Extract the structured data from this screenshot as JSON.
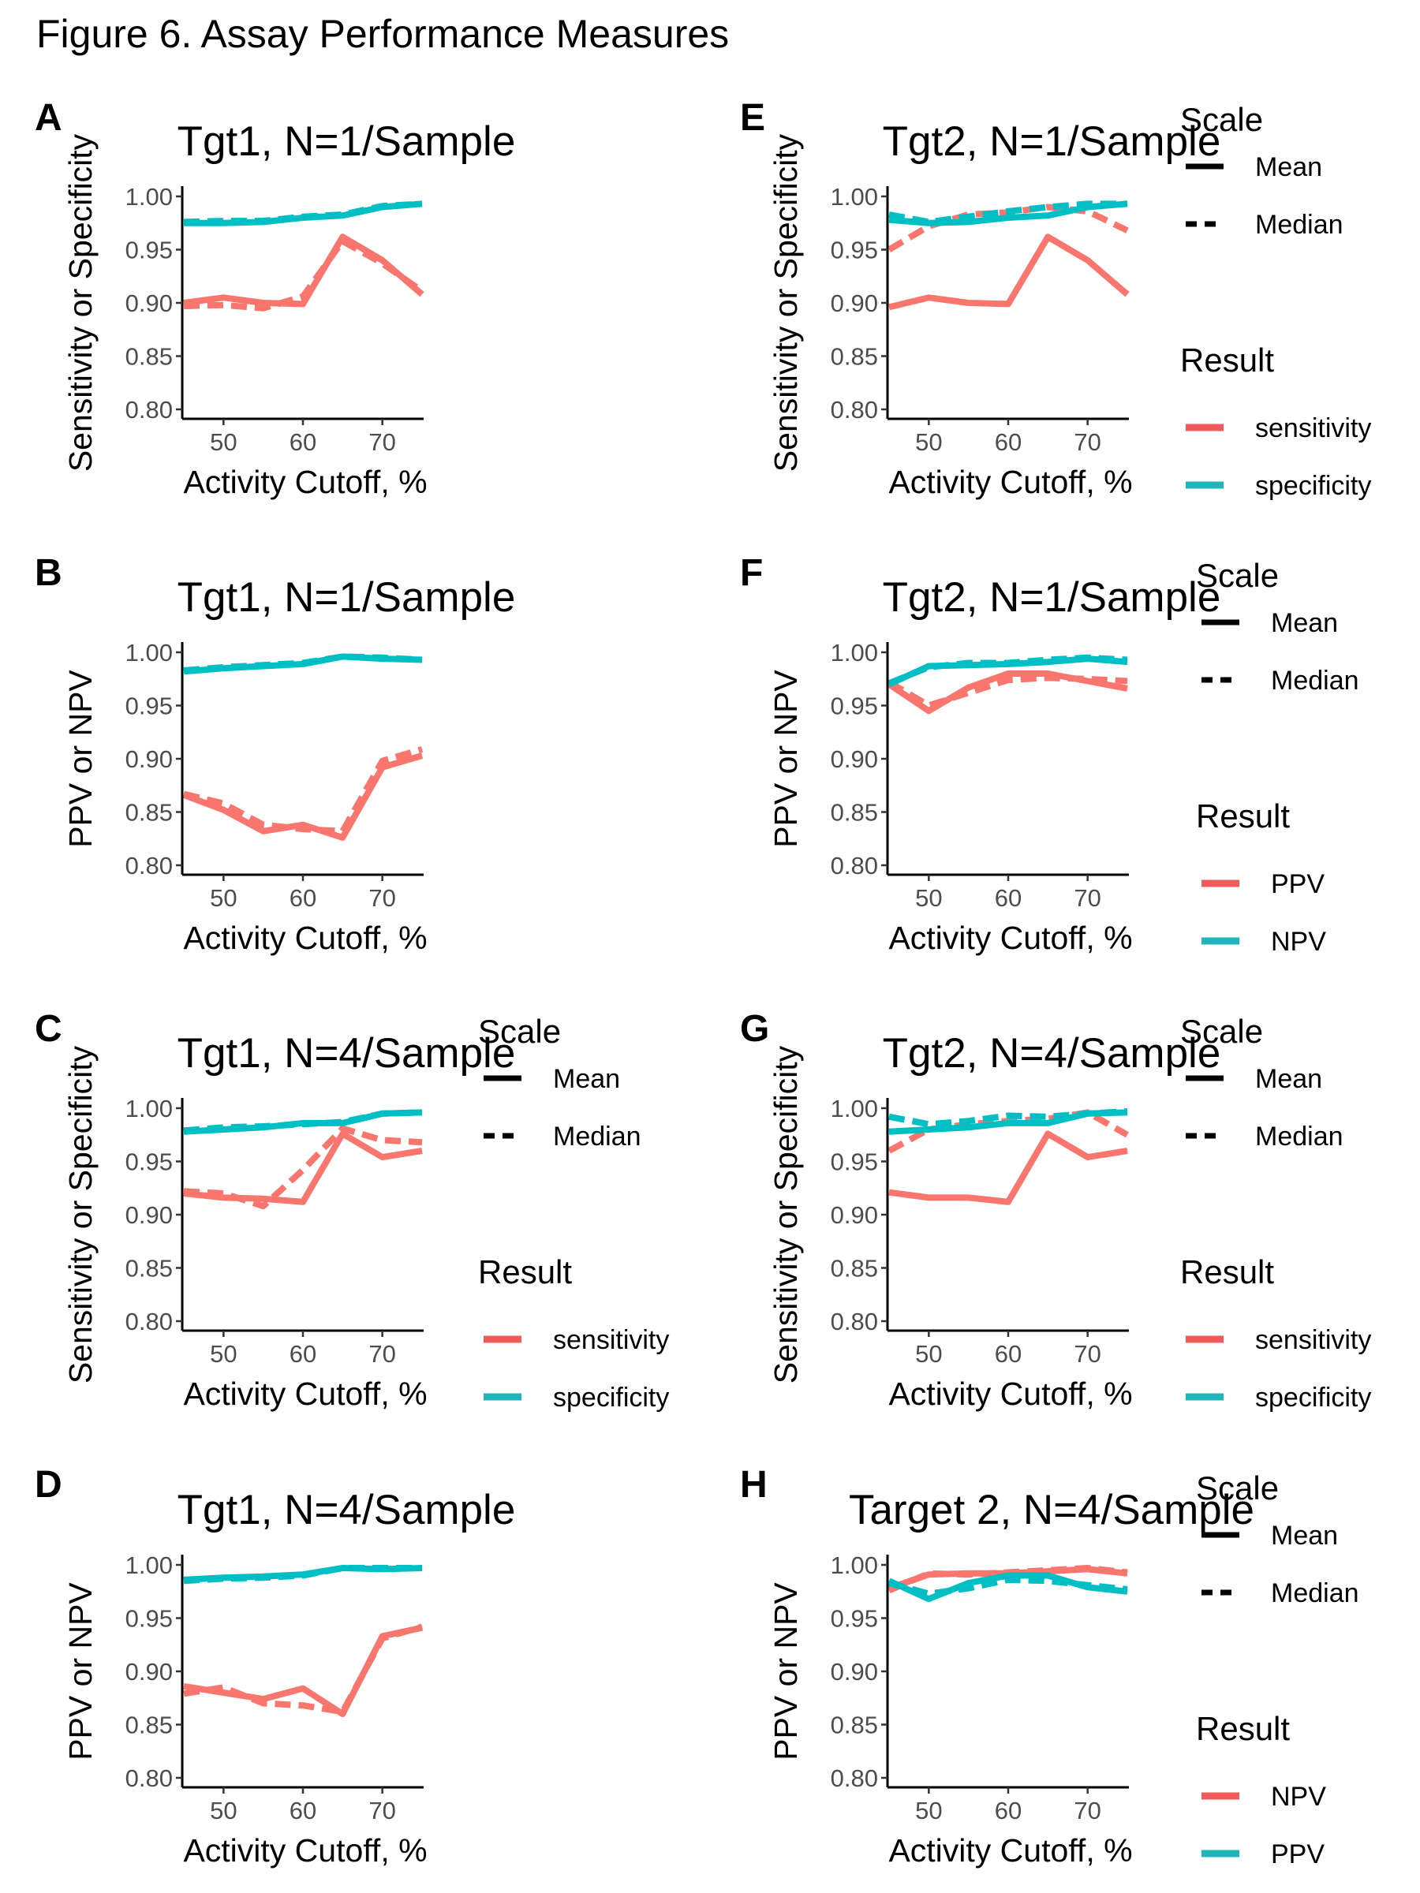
{
  "figure_title": "Figure 6. Assay Performance Measures",
  "colors": {
    "red": "#F8766D",
    "teal": "#00BFC4",
    "legend_red": "#F05A5A",
    "legend_teal": "#1FB5B9"
  },
  "chart_data": [
    {
      "panel": "A",
      "type": "line",
      "title": "Tgt1, N=1/Sample",
      "xlabel": "Activity Cutoff, %",
      "ylabel": "Sensitivity or Specificity",
      "xlim": [
        45,
        75
      ],
      "ylim": [
        0.8,
        1.0
      ],
      "x_ticks": [
        50,
        60,
        70
      ],
      "y_ticks": [
        "0.80",
        "0.85",
        "0.90",
        "0.95",
        "1.00"
      ],
      "x": [
        45,
        50,
        55,
        60,
        65,
        70,
        75
      ],
      "series": [
        {
          "result": "sensitivity",
          "scale": "Mean",
          "color": "#F8766D",
          "values": [
            0.9,
            0.905,
            0.9,
            0.899,
            0.962,
            0.94,
            0.908
          ]
        },
        {
          "result": "sensitivity",
          "scale": "Median",
          "color": "#F8766D",
          "values": [
            0.897,
            0.898,
            0.895,
            0.906,
            0.958,
            0.937,
            0.911
          ]
        },
        {
          "result": "specificity",
          "scale": "Mean",
          "color": "#00BFC4",
          "values": [
            0.975,
            0.975,
            0.976,
            0.98,
            0.982,
            0.99,
            0.993
          ]
        },
        {
          "result": "specificity",
          "scale": "Median",
          "color": "#00BFC4",
          "values": [
            0.976,
            0.977,
            0.977,
            0.981,
            0.983,
            0.991,
            0.993
          ]
        }
      ]
    },
    {
      "panel": "B",
      "type": "line",
      "title": "Tgt1, N=1/Sample",
      "xlabel": "Activity Cutoff, %",
      "ylabel": "PPV or NPV",
      "xlim": [
        45,
        75
      ],
      "ylim": [
        0.8,
        1.0
      ],
      "x_ticks": [
        50,
        60,
        70
      ],
      "y_ticks": [
        "0.80",
        "0.85",
        "0.90",
        "0.95",
        "1.00"
      ],
      "x": [
        45,
        50,
        55,
        60,
        65,
        70,
        75
      ],
      "series": [
        {
          "result": "PPV",
          "scale": "Mean",
          "color": "#F8766D",
          "values": [
            0.866,
            0.852,
            0.832,
            0.838,
            0.826,
            0.892,
            0.903
          ]
        },
        {
          "result": "PPV",
          "scale": "Median",
          "color": "#F8766D",
          "values": [
            0.867,
            0.858,
            0.838,
            0.834,
            0.832,
            0.898,
            0.909
          ]
        },
        {
          "result": "NPV",
          "scale": "Mean",
          "color": "#00BFC4",
          "values": [
            0.982,
            0.985,
            0.987,
            0.989,
            0.996,
            0.994,
            0.993
          ]
        },
        {
          "result": "NPV",
          "scale": "Median",
          "color": "#00BFC4",
          "values": [
            0.983,
            0.986,
            0.988,
            0.99,
            0.996,
            0.995,
            0.993
          ]
        }
      ]
    },
    {
      "panel": "C",
      "type": "line",
      "title": "Tgt1, N=4/Sample",
      "xlabel": "Activity Cutoff, %",
      "ylabel": "Sensitivity or Specificity",
      "xlim": [
        45,
        75
      ],
      "ylim": [
        0.8,
        1.0
      ],
      "x_ticks": [
        50,
        60,
        70
      ],
      "y_ticks": [
        "0.80",
        "0.85",
        "0.90",
        "0.95",
        "1.00"
      ],
      "x": [
        45,
        50,
        55,
        60,
        65,
        70,
        75
      ],
      "series": [
        {
          "result": "sensitivity",
          "scale": "Mean",
          "color": "#F8766D",
          "values": [
            0.92,
            0.916,
            0.915,
            0.912,
            0.976,
            0.954,
            0.96
          ]
        },
        {
          "result": "sensitivity",
          "scale": "Median",
          "color": "#F8766D",
          "values": [
            0.922,
            0.92,
            0.908,
            0.942,
            0.981,
            0.97,
            0.968
          ]
        },
        {
          "result": "specificity",
          "scale": "Mean",
          "color": "#00BFC4",
          "values": [
            0.978,
            0.98,
            0.982,
            0.986,
            0.986,
            0.995,
            0.996
          ]
        },
        {
          "result": "specificity",
          "scale": "Median",
          "color": "#00BFC4",
          "values": [
            0.979,
            0.982,
            0.983,
            0.985,
            0.987,
            0.995,
            0.996
          ]
        }
      ]
    },
    {
      "panel": "D",
      "type": "line",
      "title": "Tgt1, N=4/Sample",
      "xlabel": "Activity Cutoff, %",
      "ylabel": "PPV or NPV",
      "xlim": [
        45,
        75
      ],
      "ylim": [
        0.8,
        1.0
      ],
      "x_ticks": [
        50,
        60,
        70
      ],
      "y_ticks": [
        "0.80",
        "0.85",
        "0.90",
        "0.95",
        "1.00"
      ],
      "x": [
        45,
        50,
        55,
        60,
        65,
        70,
        75
      ],
      "series": [
        {
          "result": "PPV",
          "scale": "Mean",
          "color": "#F8766D",
          "values": [
            0.886,
            0.88,
            0.874,
            0.884,
            0.86,
            0.933,
            0.941
          ]
        },
        {
          "result": "PPV",
          "scale": "Median",
          "color": "#F8766D",
          "values": [
            0.879,
            0.885,
            0.87,
            0.868,
            0.862,
            0.931,
            0.942
          ]
        },
        {
          "result": "NPV",
          "scale": "Mean",
          "color": "#00BFC4",
          "values": [
            0.986,
            0.988,
            0.989,
            0.991,
            0.997,
            0.996,
            0.997
          ]
        },
        {
          "result": "NPV",
          "scale": "Median",
          "color": "#00BFC4",
          "values": [
            0.985,
            0.987,
            0.988,
            0.99,
            0.997,
            0.997,
            0.997
          ]
        }
      ]
    },
    {
      "panel": "E",
      "type": "line",
      "title": "Tgt2, N=1/Sample",
      "xlabel": "Activity Cutoff, %",
      "ylabel": "Sensitivity or Specificity",
      "xlim": [
        45,
        75
      ],
      "ylim": [
        0.8,
        1.0
      ],
      "x_ticks": [
        50,
        60,
        70
      ],
      "y_ticks": [
        "0.80",
        "0.85",
        "0.90",
        "0.95",
        "1.00"
      ],
      "x": [
        45,
        50,
        55,
        60,
        65,
        70,
        75
      ],
      "series": [
        {
          "result": "sensitivity",
          "scale": "Mean",
          "color": "#F8766D",
          "values": [
            0.896,
            0.905,
            0.9,
            0.899,
            0.962,
            0.94,
            0.908
          ]
        },
        {
          "result": "sensitivity",
          "scale": "Median",
          "color": "#F8766D",
          "values": [
            0.95,
            0.972,
            0.983,
            0.985,
            0.99,
            0.986,
            0.968
          ]
        },
        {
          "result": "specificity",
          "scale": "Mean",
          "color": "#00BFC4",
          "values": [
            0.978,
            0.975,
            0.976,
            0.98,
            0.982,
            0.99,
            0.993
          ]
        },
        {
          "result": "specificity",
          "scale": "Median",
          "color": "#00BFC4",
          "values": [
            0.983,
            0.976,
            0.981,
            0.986,
            0.99,
            0.993,
            0.993
          ]
        }
      ],
      "legend": {
        "scale_title": "Scale",
        "scale_items": [
          "Mean",
          "Median"
        ],
        "result_title": "Result",
        "result_items": [
          "sensitivity",
          "specificity"
        ]
      }
    },
    {
      "panel": "F",
      "type": "line",
      "title": "Tgt2, N=1/Sample",
      "xlabel": "Activity Cutoff, %",
      "ylabel": "PPV or NPV",
      "xlim": [
        45,
        75
      ],
      "ylim": [
        0.8,
        1.0
      ],
      "x_ticks": [
        50,
        60,
        70
      ],
      "y_ticks": [
        "0.80",
        "0.85",
        "0.90",
        "0.95",
        "1.00"
      ],
      "x": [
        45,
        50,
        55,
        60,
        65,
        70,
        75
      ],
      "series": [
        {
          "result": "PPV",
          "scale": "Mean",
          "color": "#F8766D",
          "values": [
            0.97,
            0.945,
            0.967,
            0.98,
            0.98,
            0.973,
            0.966
          ]
        },
        {
          "result": "PPV",
          "scale": "Median",
          "color": "#F8766D",
          "values": [
            0.972,
            0.95,
            0.962,
            0.974,
            0.976,
            0.975,
            0.973
          ]
        },
        {
          "result": "NPV",
          "scale": "Mean",
          "color": "#00BFC4",
          "values": [
            0.97,
            0.987,
            0.988,
            0.989,
            0.991,
            0.994,
            0.991
          ]
        },
        {
          "result": "NPV",
          "scale": "Median",
          "color": "#00BFC4",
          "values": [
            0.971,
            0.986,
            0.99,
            0.99,
            0.993,
            0.995,
            0.993
          ]
        }
      ],
      "legend": {
        "scale_title": "Scale",
        "scale_items": [
          "Mean",
          "Median"
        ],
        "result_title": "Result",
        "result_items": [
          "PPV",
          "NPV"
        ]
      }
    },
    {
      "panel": "G",
      "type": "line",
      "title": "Tgt2, N=4/Sample",
      "xlabel": "Activity Cutoff, %",
      "ylabel": "Sensitivity or Specificity",
      "xlim": [
        45,
        75
      ],
      "ylim": [
        0.8,
        1.0
      ],
      "x_ticks": [
        50,
        60,
        70
      ],
      "y_ticks": [
        "0.80",
        "0.85",
        "0.90",
        "0.95",
        "1.00"
      ],
      "x": [
        45,
        50,
        55,
        60,
        65,
        70,
        75
      ],
      "series": [
        {
          "result": "sensitivity",
          "scale": "Mean",
          "color": "#F8766D",
          "values": [
            0.921,
            0.916,
            0.916,
            0.912,
            0.976,
            0.954,
            0.96
          ]
        },
        {
          "result": "sensitivity",
          "scale": "Median",
          "color": "#F8766D",
          "values": [
            0.96,
            0.98,
            0.985,
            0.988,
            0.99,
            0.996,
            0.975
          ]
        },
        {
          "result": "specificity",
          "scale": "Mean",
          "color": "#00BFC4",
          "values": [
            0.978,
            0.98,
            0.982,
            0.986,
            0.986,
            0.995,
            0.996
          ]
        },
        {
          "result": "specificity",
          "scale": "Median",
          "color": "#00BFC4",
          "values": [
            0.992,
            0.985,
            0.988,
            0.993,
            0.992,
            0.995,
            0.997
          ]
        }
      ],
      "legend": {
        "scale_title": "Scale",
        "scale_items": [
          "Mean",
          "Median"
        ],
        "result_title": "Result",
        "result_items": [
          "sensitivity",
          "specificity"
        ]
      }
    },
    {
      "panel": "H",
      "type": "line",
      "title": "Target 2, N=4/Sample",
      "xlabel": "Activity Cutoff, %",
      "ylabel": "PPV or NPV",
      "xlim": [
        45,
        75
      ],
      "ylim": [
        0.8,
        1.0
      ],
      "x_ticks": [
        50,
        60,
        70
      ],
      "y_ticks": [
        "0.80",
        "0.85",
        "0.90",
        "0.95",
        "1.00"
      ],
      "x": [
        45,
        50,
        55,
        60,
        65,
        70,
        75
      ],
      "series": [
        {
          "result": "NPV",
          "scale": "Mean",
          "color": "#F8766D",
          "values": [
            0.978,
            0.991,
            0.992,
            0.992,
            0.994,
            0.996,
            0.992
          ]
        },
        {
          "result": "NPV",
          "scale": "Median",
          "color": "#F8766D",
          "values": [
            0.976,
            0.992,
            0.991,
            0.993,
            0.995,
            0.997,
            0.993
          ]
        },
        {
          "result": "PPV",
          "scale": "Mean",
          "color": "#00BFC4",
          "values": [
            0.985,
            0.968,
            0.983,
            0.99,
            0.99,
            0.979,
            0.975
          ]
        },
        {
          "result": "PPV",
          "scale": "Median",
          "color": "#00BFC4",
          "values": [
            0.983,
            0.973,
            0.978,
            0.986,
            0.985,
            0.981,
            0.977
          ]
        }
      ],
      "legend": {
        "scale_title": "Scale",
        "scale_items": [
          "Mean",
          "Median"
        ],
        "result_title": "Result",
        "result_items": [
          "NPV",
          "PPV"
        ]
      }
    }
  ]
}
